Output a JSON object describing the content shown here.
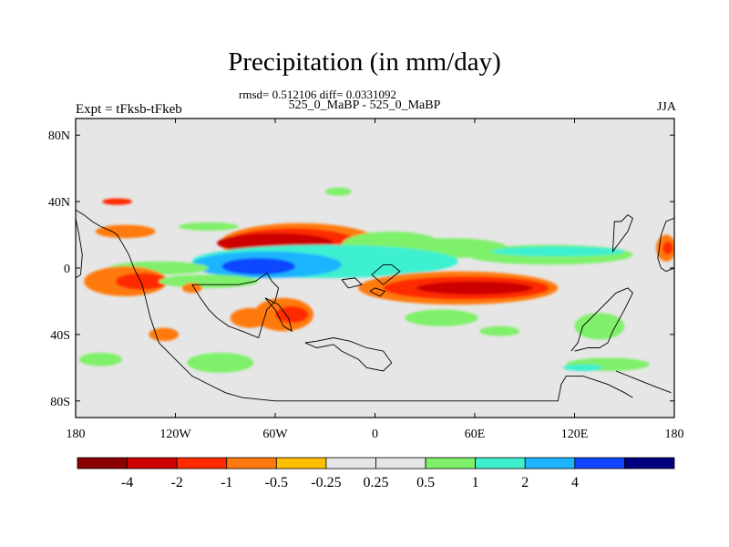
{
  "chart_data": {
    "type": "heatmap",
    "title": "Precipitation (in mm/day)",
    "stats_line": "rmsd= 0.512106 diff= 0.0331092",
    "subtitle": "525_0_MaBP - 525_0_MaBP",
    "left_label": "Expt = tFksb-tFkeb",
    "right_label": "JJA",
    "xlim": [
      -180,
      180
    ],
    "ylim": [
      -90,
      90
    ],
    "x_ticks": [
      {
        "value": -180,
        "label": "180"
      },
      {
        "value": -120,
        "label": "120W"
      },
      {
        "value": -60,
        "label": "60W"
      },
      {
        "value": 0,
        "label": "0"
      },
      {
        "value": 60,
        "label": "60E"
      },
      {
        "value": 120,
        "label": "120E"
      },
      {
        "value": 180,
        "label": "180"
      }
    ],
    "y_ticks": [
      {
        "value": 80,
        "label": "80N"
      },
      {
        "value": 40,
        "label": "40N"
      },
      {
        "value": 0,
        "label": "0"
      },
      {
        "value": -40,
        "label": "40S"
      },
      {
        "value": -80,
        "label": "80S"
      }
    ],
    "colorbar": {
      "colors": [
        "#8b0000",
        "#cc0000",
        "#ff2a00",
        "#ff7a10",
        "#ffbf00",
        "#e6e6e6",
        "#e6e6e6",
        "#7ff06a",
        "#3ef0d0",
        "#1eb4ff",
        "#1046ff",
        "#000080"
      ],
      "labels": [
        "-4",
        "-2",
        "-1",
        "-0.5",
        "-0.25",
        "0.25",
        "0.5",
        "1",
        "2",
        "4"
      ]
    },
    "anomaly_regions": [
      {
        "lon": -155,
        "lat": 40,
        "rx": 9,
        "ry": 2,
        "value": -1.5
      },
      {
        "lon": -150,
        "lat": 22,
        "rx": 18,
        "ry": 4,
        "value": -0.5
      },
      {
        "lon": -100,
        "lat": 25,
        "rx": 18,
        "ry": 2.5,
        "value": 0.5
      },
      {
        "lon": -22,
        "lat": 46,
        "rx": 8,
        "ry": 2.5,
        "value": 0.5
      },
      {
        "lon": -45,
        "lat": 15,
        "rx": 48,
        "ry": 12,
        "value": -0.5
      },
      {
        "lon": -50,
        "lat": 15,
        "rx": 40,
        "ry": 9,
        "value": -1
      },
      {
        "lon": -60,
        "lat": 15,
        "rx": 35,
        "ry": 6,
        "value": -2
      },
      {
        "lon": 10,
        "lat": 14,
        "rx": 30,
        "ry": 8,
        "value": 0.5
      },
      {
        "lon": 45,
        "lat": 12,
        "rx": 35,
        "ry": 6,
        "value": 0.5
      },
      {
        "lon": 105,
        "lat": 8,
        "rx": 50,
        "ry": 6,
        "value": 0.5
      },
      {
        "lon": 110,
        "lat": 10,
        "rx": 40,
        "ry": 3,
        "value": 1
      },
      {
        "lon": -30,
        "lat": 4,
        "rx": 80,
        "ry": 10,
        "value": 1
      },
      {
        "lon": -65,
        "lat": 2,
        "rx": 45,
        "ry": 8,
        "value": 2
      },
      {
        "lon": -70,
        "lat": 1,
        "rx": 22,
        "ry": 5,
        "value": 4
      },
      {
        "lon": -130,
        "lat": 0,
        "rx": 30,
        "ry": 4,
        "value": 0.5
      },
      {
        "lon": -150,
        "lat": -8,
        "rx": 25,
        "ry": 9,
        "value": -0.5
      },
      {
        "lon": -140,
        "lat": -8,
        "rx": 16,
        "ry": 5,
        "value": -1
      },
      {
        "lon": -100,
        "lat": -8,
        "rx": 30,
        "ry": 4,
        "value": 0.5
      },
      {
        "lon": 50,
        "lat": -12,
        "rx": 60,
        "ry": 10,
        "value": -0.5
      },
      {
        "lon": 55,
        "lat": -12,
        "rx": 50,
        "ry": 7,
        "value": -1
      },
      {
        "lon": 60,
        "lat": -12,
        "rx": 35,
        "ry": 4,
        "value": -2
      },
      {
        "lon": -55,
        "lat": -28,
        "rx": 18,
        "ry": 10,
        "value": -0.5
      },
      {
        "lon": -50,
        "lat": -28,
        "rx": 10,
        "ry": 5,
        "value": -1
      },
      {
        "lon": -75,
        "lat": -30,
        "rx": 12,
        "ry": 6,
        "value": -0.5
      },
      {
        "lon": -127,
        "lat": -40,
        "rx": 9,
        "ry": 4,
        "value": -0.5
      },
      {
        "lon": -110,
        "lat": -12,
        "rx": 6,
        "ry": 3,
        "value": -0.5
      },
      {
        "lon": 40,
        "lat": -30,
        "rx": 22,
        "ry": 5,
        "value": 0.5
      },
      {
        "lon": 75,
        "lat": -38,
        "rx": 12,
        "ry": 3,
        "value": 0.5
      },
      {
        "lon": 135,
        "lat": -35,
        "rx": 15,
        "ry": 8,
        "value": 0.5
      },
      {
        "lon": -165,
        "lat": -55,
        "rx": 13,
        "ry": 4,
        "value": 0.5
      },
      {
        "lon": -93,
        "lat": -57,
        "rx": 20,
        "ry": 6,
        "value": 0.5
      },
      {
        "lon": 140,
        "lat": -58,
        "rx": 25,
        "ry": 4,
        "value": 0.5
      },
      {
        "lon": 125,
        "lat": -60,
        "rx": 12,
        "ry": 2,
        "value": 1
      },
      {
        "lon": 175,
        "lat": 12,
        "rx": 6,
        "ry": 8,
        "value": -0.5
      },
      {
        "lon": 176,
        "lat": 12,
        "rx": 3,
        "ry": 4,
        "value": -1
      }
    ],
    "coastlines": [
      [
        [
          -180,
          35
        ],
        [
          -175,
          32
        ],
        [
          -170,
          28
        ],
        [
          -165,
          25
        ],
        [
          -158,
          22
        ],
        [
          -155,
          20
        ],
        [
          -152,
          15
        ],
        [
          -148,
          8
        ],
        [
          -145,
          0
        ],
        [
          -140,
          -10
        ],
        [
          -135,
          -30
        ],
        [
          -130,
          -45
        ],
        [
          -120,
          -55
        ],
        [
          -110,
          -65
        ],
        [
          -100,
          -70
        ],
        [
          -90,
          -75
        ],
        [
          -80,
          -78
        ]
      ],
      [
        [
          -80,
          -78
        ],
        [
          -60,
          -80
        ],
        [
          -30,
          -80
        ],
        [
          0,
          -80
        ],
        [
          30,
          -80
        ],
        [
          60,
          -80
        ],
        [
          90,
          -80
        ],
        [
          110,
          -80
        ],
        [
          112,
          -70
        ],
        [
          115,
          -65
        ],
        [
          125,
          -65
        ],
        [
          140,
          -70
        ],
        [
          150,
          -75
        ],
        [
          155,
          -78
        ]
      ],
      [
        [
          -110,
          -10
        ],
        [
          -105,
          -18
        ],
        [
          -100,
          -25
        ],
        [
          -95,
          -30
        ],
        [
          -88,
          -35
        ],
        [
          -80,
          -38
        ],
        [
          -70,
          -42
        ],
        [
          -68,
          -35
        ],
        [
          -65,
          -25
        ],
        [
          -60,
          -20
        ],
        [
          -58,
          -12
        ],
        [
          -62,
          -8
        ],
        [
          -65,
          -3
        ],
        [
          -72,
          -8
        ],
        [
          -82,
          -10
        ],
        [
          -95,
          -10
        ],
        [
          -110,
          -10
        ]
      ],
      [
        [
          -66,
          -18
        ],
        [
          -60,
          -25
        ],
        [
          -55,
          -35
        ],
        [
          -50,
          -38
        ],
        [
          -52,
          -30
        ],
        [
          -58,
          -22
        ],
        [
          -66,
          -18
        ]
      ],
      [
        [
          -42,
          -45
        ],
        [
          -35,
          -48
        ],
        [
          -25,
          -46
        ],
        [
          -20,
          -50
        ],
        [
          -10,
          -55
        ],
        [
          -5,
          -60
        ],
        [
          5,
          -62
        ],
        [
          10,
          -57
        ],
        [
          5,
          -50
        ],
        [
          -5,
          -48
        ],
        [
          -15,
          -44
        ],
        [
          -25,
          -42
        ],
        [
          -35,
          -44
        ],
        [
          -42,
          -45
        ]
      ],
      [
        [
          -2,
          -4
        ],
        [
          5,
          -10
        ],
        [
          10,
          -6
        ],
        [
          15,
          -2
        ],
        [
          10,
          2
        ],
        [
          5,
          2
        ],
        [
          -2,
          -4
        ]
      ],
      [
        [
          -20,
          -7
        ],
        [
          -12,
          -6
        ],
        [
          -8,
          -10
        ],
        [
          -16,
          -12
        ],
        [
          -20,
          -7
        ]
      ],
      [
        [
          -3,
          -14
        ],
        [
          3,
          -17
        ],
        [
          6,
          -14
        ],
        [
          0,
          -12
        ],
        [
          -3,
          -14
        ]
      ],
      [
        [
          118,
          -50
        ],
        [
          122,
          -45
        ],
        [
          125,
          -35
        ],
        [
          130,
          -30
        ],
        [
          135,
          -25
        ],
        [
          145,
          -15
        ],
        [
          152,
          -12
        ],
        [
          155,
          -15
        ],
        [
          150,
          -25
        ],
        [
          143,
          -38
        ],
        [
          140,
          -45
        ],
        [
          135,
          -48
        ],
        [
          128,
          -48
        ],
        [
          120,
          -50
        ]
      ],
      [
        [
          145,
          -62
        ],
        [
          160,
          -68
        ],
        [
          170,
          -72
        ],
        [
          178,
          -75
        ]
      ],
      [
        [
          148,
          28
        ],
        [
          152,
          32
        ],
        [
          155,
          30
        ],
        [
          152,
          22
        ],
        [
          149,
          18
        ],
        [
          146,
          14
        ],
        [
          143,
          10
        ],
        [
          144,
          28
        ],
        [
          148,
          28
        ]
      ],
      [
        [
          180,
          30
        ],
        [
          175,
          28
        ],
        [
          172,
          20
        ],
        [
          171,
          12
        ],
        [
          170,
          6
        ],
        [
          172,
          0
        ],
        [
          175,
          -2
        ],
        [
          180,
          0
        ]
      ],
      [
        [
          -180,
          30
        ],
        [
          -178,
          20
        ],
        [
          -176,
          8
        ],
        [
          -177,
          -4
        ],
        [
          -180,
          -6
        ]
      ]
    ]
  }
}
